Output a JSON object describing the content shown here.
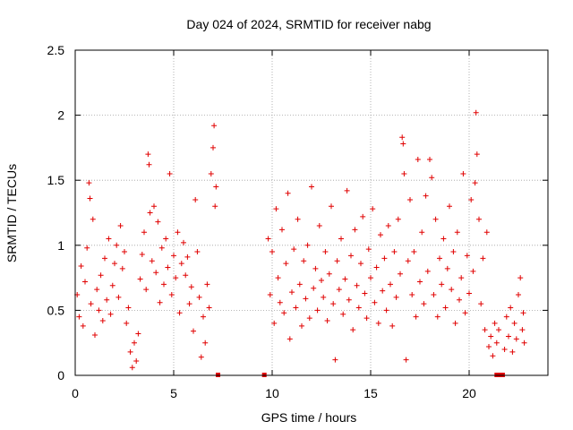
{
  "chart_data": {
    "type": "scatter",
    "title": "Day 024 of 2024, SRMTID for receiver nabg",
    "xlabel": "GPS time / hours",
    "ylabel": "SRMTID / TECUs",
    "xlim": [
      0,
      24
    ],
    "ylim": [
      0,
      2.5
    ],
    "xticks": [
      0,
      5,
      10,
      15,
      20
    ],
    "yticks": [
      0,
      0.5,
      1,
      1.5,
      2,
      2.5
    ],
    "x_tick_labels": [
      "0",
      "5",
      "10",
      "15",
      "20"
    ],
    "y_tick_labels": [
      "0",
      "0.5",
      "1",
      "1.5",
      "2",
      "2.5"
    ],
    "grid": true,
    "marker": "plus",
    "color": "#e00000",
    "series": [
      {
        "name": "SRMTID",
        "points": [
          [
            0.1,
            0.62
          ],
          [
            0.2,
            0.45
          ],
          [
            0.3,
            0.84
          ],
          [
            0.4,
            0.38
          ],
          [
            0.5,
            0.72
          ],
          [
            0.6,
            0.98
          ],
          [
            0.7,
            1.48
          ],
          [
            0.75,
            1.36
          ],
          [
            0.8,
            0.55
          ],
          [
            0.9,
            1.2
          ],
          [
            1.0,
            0.31
          ],
          [
            1.1,
            0.66
          ],
          [
            1.2,
            0.5
          ],
          [
            1.3,
            0.77
          ],
          [
            1.4,
            0.42
          ],
          [
            1.5,
            0.9
          ],
          [
            1.6,
            0.58
          ],
          [
            1.7,
            1.05
          ],
          [
            1.8,
            0.47
          ],
          [
            1.9,
            0.69
          ],
          [
            2.0,
            0.86
          ],
          [
            2.1,
            1.0
          ],
          [
            2.2,
            0.6
          ],
          [
            2.3,
            1.15
          ],
          [
            2.4,
            0.82
          ],
          [
            2.5,
            0.95
          ],
          [
            2.6,
            0.4
          ],
          [
            2.7,
            0.52
          ],
          [
            2.8,
            0.18
          ],
          [
            2.9,
            0.06
          ],
          [
            3.0,
            0.25
          ],
          [
            3.1,
            0.11
          ],
          [
            3.2,
            0.32
          ],
          [
            3.3,
            0.74
          ],
          [
            3.4,
            0.93
          ],
          [
            3.5,
            1.1
          ],
          [
            3.6,
            0.66
          ],
          [
            3.7,
            1.7
          ],
          [
            3.75,
            1.62
          ],
          [
            3.8,
            1.25
          ],
          [
            3.9,
            0.88
          ],
          [
            4.0,
            1.3
          ],
          [
            4.1,
            0.79
          ],
          [
            4.2,
            1.18
          ],
          [
            4.3,
            0.56
          ],
          [
            4.4,
            0.98
          ],
          [
            4.5,
            0.7
          ],
          [
            4.6,
            1.05
          ],
          [
            4.7,
            0.83
          ],
          [
            4.8,
            1.55
          ],
          [
            4.9,
            0.62
          ],
          [
            5.0,
            0.92
          ],
          [
            5.1,
            0.75
          ],
          [
            5.2,
            1.1
          ],
          [
            5.3,
            0.48
          ],
          [
            5.4,
            0.86
          ],
          [
            5.5,
            1.02
          ],
          [
            5.6,
            0.77
          ],
          [
            5.7,
            0.91
          ],
          [
            5.8,
            0.55
          ],
          [
            5.9,
            0.68
          ],
          [
            6.0,
            0.34
          ],
          [
            6.1,
            1.35
          ],
          [
            6.2,
            0.95
          ],
          [
            6.3,
            0.6
          ],
          [
            6.4,
            0.14
          ],
          [
            6.5,
            0.45
          ],
          [
            6.6,
            0.25
          ],
          [
            6.7,
            0.7
          ],
          [
            6.8,
            0.52
          ],
          [
            6.9,
            1.55
          ],
          [
            7.0,
            1.75
          ],
          [
            7.05,
            1.92
          ],
          [
            7.1,
            1.3
          ],
          [
            7.15,
            1.45
          ],
          [
            9.8,
            1.05
          ],
          [
            9.9,
            0.62
          ],
          [
            10.0,
            0.95
          ],
          [
            10.1,
            0.4
          ],
          [
            10.2,
            1.28
          ],
          [
            10.3,
            0.75
          ],
          [
            10.4,
            0.56
          ],
          [
            10.5,
            1.12
          ],
          [
            10.6,
            0.48
          ],
          [
            10.7,
            0.86
          ],
          [
            10.8,
            1.4
          ],
          [
            10.9,
            0.28
          ],
          [
            11.0,
            0.64
          ],
          [
            11.1,
            0.97
          ],
          [
            11.2,
            0.52
          ],
          [
            11.3,
            1.2
          ],
          [
            11.4,
            0.7
          ],
          [
            11.5,
            0.38
          ],
          [
            11.6,
            0.88
          ],
          [
            11.7,
            0.59
          ],
          [
            11.8,
            1.0
          ],
          [
            11.9,
            0.44
          ],
          [
            12.0,
            1.45
          ],
          [
            12.1,
            0.67
          ],
          [
            12.2,
            0.82
          ],
          [
            12.3,
            0.5
          ],
          [
            12.4,
            1.15
          ],
          [
            12.5,
            0.73
          ],
          [
            12.6,
            0.6
          ],
          [
            12.7,
            0.95
          ],
          [
            12.8,
            0.42
          ],
          [
            12.9,
            0.78
          ],
          [
            13.0,
            1.3
          ],
          [
            13.1,
            0.55
          ],
          [
            13.2,
            0.12
          ],
          [
            13.3,
            0.88
          ],
          [
            13.4,
            0.66
          ],
          [
            13.5,
            1.05
          ],
          [
            13.6,
            0.47
          ],
          [
            13.7,
            0.74
          ],
          [
            13.8,
            1.42
          ],
          [
            13.9,
            0.58
          ],
          [
            14.0,
            0.92
          ],
          [
            14.1,
            0.35
          ],
          [
            14.2,
            1.12
          ],
          [
            14.3,
            0.69
          ],
          [
            14.4,
            0.52
          ],
          [
            14.5,
            0.86
          ],
          [
            14.6,
            1.22
          ],
          [
            14.7,
            0.63
          ],
          [
            14.8,
            0.44
          ],
          [
            14.9,
            0.97
          ],
          [
            15.0,
            0.75
          ],
          [
            15.1,
            1.28
          ],
          [
            15.2,
            0.56
          ],
          [
            15.3,
            0.83
          ],
          [
            15.4,
            0.4
          ],
          [
            15.5,
            1.08
          ],
          [
            15.6,
            0.65
          ],
          [
            15.7,
            0.9
          ],
          [
            15.8,
            0.5
          ],
          [
            15.9,
            1.15
          ],
          [
            16.0,
            0.7
          ],
          [
            16.1,
            0.38
          ],
          [
            16.2,
            0.95
          ],
          [
            16.3,
            0.6
          ],
          [
            16.4,
            1.2
          ],
          [
            16.5,
            0.78
          ],
          [
            16.6,
            1.83
          ],
          [
            16.65,
            1.78
          ],
          [
            16.7,
            1.55
          ],
          [
            16.8,
            0.12
          ],
          [
            16.9,
            0.88
          ],
          [
            17.0,
            1.35
          ],
          [
            17.1,
            0.62
          ],
          [
            17.2,
            0.95
          ],
          [
            17.3,
            0.45
          ],
          [
            17.4,
            1.66
          ],
          [
            17.5,
            0.72
          ],
          [
            17.6,
            1.1
          ],
          [
            17.7,
            0.55
          ],
          [
            17.8,
            1.38
          ],
          [
            17.9,
            0.8
          ],
          [
            18.0,
            1.66
          ],
          [
            18.1,
            1.52
          ],
          [
            18.2,
            0.62
          ],
          [
            18.3,
            1.2
          ],
          [
            18.4,
            0.45
          ],
          [
            18.5,
            0.9
          ],
          [
            18.6,
            0.7
          ],
          [
            18.7,
            1.05
          ],
          [
            18.8,
            0.52
          ],
          [
            18.9,
            0.82
          ],
          [
            19.0,
            1.3
          ],
          [
            19.1,
            0.66
          ],
          [
            19.2,
            0.95
          ],
          [
            19.3,
            0.4
          ],
          [
            19.4,
            1.1
          ],
          [
            19.5,
            0.58
          ],
          [
            19.6,
            0.75
          ],
          [
            19.7,
            1.55
          ],
          [
            19.8,
            0.48
          ],
          [
            19.9,
            0.92
          ],
          [
            20.0,
            0.63
          ],
          [
            20.1,
            1.35
          ],
          [
            20.2,
            0.8
          ],
          [
            20.3,
            1.48
          ],
          [
            20.35,
            2.02
          ],
          [
            20.4,
            1.7
          ],
          [
            20.5,
            1.2
          ],
          [
            20.6,
            0.55
          ],
          [
            20.7,
            0.9
          ],
          [
            20.8,
            0.35
          ],
          [
            20.9,
            1.1
          ],
          [
            21.0,
            0.22
          ],
          [
            21.1,
            0.3
          ],
          [
            21.2,
            0.15
          ],
          [
            21.3,
            0.4
          ],
          [
            21.4,
            0.25
          ],
          [
            21.5,
            0.35
          ],
          [
            21.8,
            0.2
          ],
          [
            21.9,
            0.45
          ],
          [
            22.0,
            0.3
          ],
          [
            22.1,
            0.52
          ],
          [
            22.2,
            0.18
          ],
          [
            22.3,
            0.4
          ],
          [
            22.4,
            0.28
          ],
          [
            22.5,
            0.62
          ],
          [
            22.6,
            0.75
          ],
          [
            22.7,
            0.35
          ],
          [
            22.75,
            0.48
          ],
          [
            22.8,
            0.25
          ]
        ]
      }
    ],
    "gap_markers": [
      7.25,
      9.6,
      21.4,
      21.55,
      21.7
    ]
  }
}
